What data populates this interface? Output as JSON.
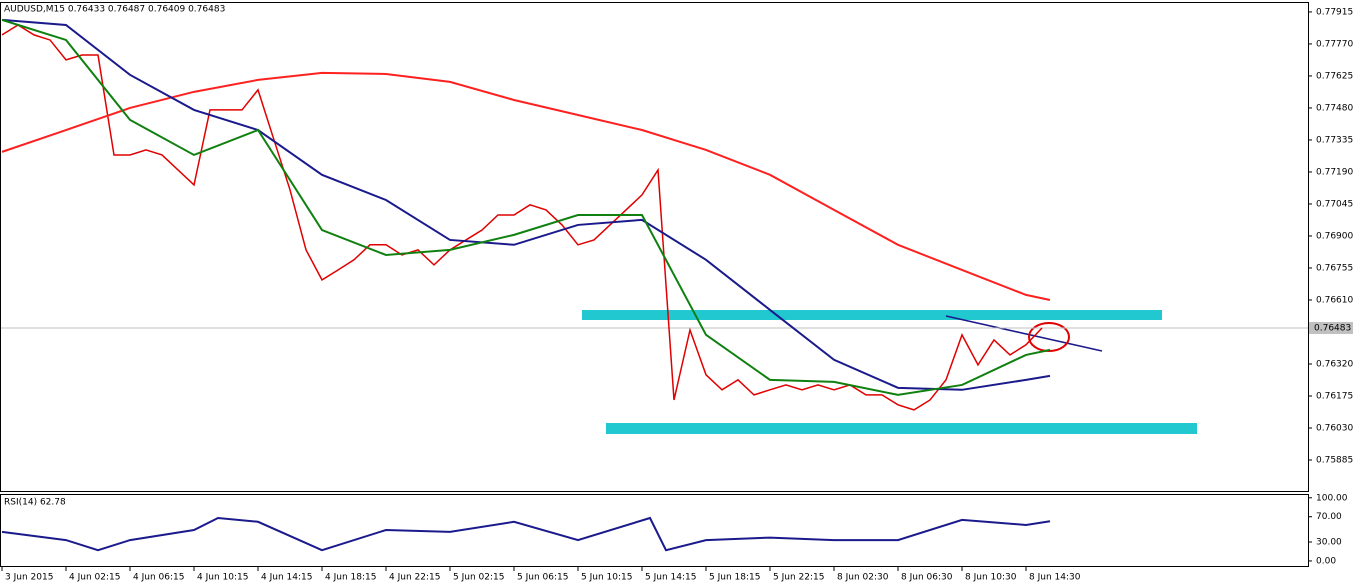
{
  "chart_data": [
    {
      "type": "line",
      "title": "AUDUSD,M15  0.76433 0.76487 0.76409 0.76483",
      "xlim": [
        0,
        327
      ],
      "ylim": [
        0.7574,
        0.7796
      ],
      "yticks": [
        {
          "value": 0.77915,
          "label": "0.77915"
        },
        {
          "value": 0.7777,
          "label": "0.77770"
        },
        {
          "value": 0.77625,
          "label": "0.77625"
        },
        {
          "value": 0.7748,
          "label": "0.77480"
        },
        {
          "value": 0.77335,
          "label": "0.77335"
        },
        {
          "value": 0.7719,
          "label": "0.77190"
        },
        {
          "value": 0.77045,
          "label": "0.77045"
        },
        {
          "value": 0.769,
          "label": "0.76900"
        },
        {
          "value": 0.76755,
          "label": "0.76755"
        },
        {
          "value": 0.7661,
          "label": "0.76610"
        },
        {
          "value": 0.7632,
          "label": "0.76320"
        },
        {
          "value": 0.76175,
          "label": "0.76175"
        },
        {
          "value": 0.7603,
          "label": "0.76030"
        },
        {
          "value": 0.75885,
          "label": "0.75885"
        }
      ],
      "current_price": {
        "value": 0.76483,
        "label": "0.76483"
      },
      "series": [
        {
          "color": "#e00000",
          "x": [
            0,
            4,
            8,
            12,
            16,
            20,
            24,
            28,
            32,
            36,
            40,
            44,
            48,
            52,
            56,
            60,
            64,
            68,
            72,
            76,
            80,
            84,
            88,
            92,
            96,
            100,
            104,
            108,
            112,
            116,
            120,
            124,
            128,
            132,
            136,
            140,
            144,
            148,
            152,
            156,
            160,
            164,
            168,
            172,
            176,
            180,
            184,
            188,
            192,
            196,
            200,
            204,
            208,
            212,
            216,
            220,
            224,
            228,
            232,
            236,
            240,
            244,
            248,
            252,
            256,
            260
          ],
          "values": [
            0.77811,
            0.77856,
            0.77811,
            0.77788,
            0.77698,
            0.7772,
            0.7772,
            0.77267,
            0.77267,
            0.7729,
            0.77267,
            0.77199,
            0.77131,
            0.77471,
            0.77471,
            0.77471,
            0.77562,
            0.77335,
            0.77109,
            0.76837,
            0.76701,
            0.76746,
            0.76792,
            0.7686,
            0.7686,
            0.76814,
            0.76837,
            0.76769,
            0.76837,
            0.76882,
            0.76927,
            0.76995,
            0.76995,
            0.77041,
            0.77018,
            0.7695,
            0.7686,
            0.76882,
            0.7695,
            0.77018,
            0.77086,
            0.77199,
            0.76157,
            0.76474,
            0.76271,
            0.76203,
            0.76248,
            0.7618,
            0.76203,
            0.76225,
            0.76203,
            0.76225,
            0.76203,
            0.76225,
            0.7618,
            0.7618,
            0.76135,
            0.76112,
            0.76157,
            0.76248,
            0.76452,
            0.76316,
            0.76429,
            0.76361,
            0.76407,
            0.76483
          ]
        },
        {
          "color": "#ff2020",
          "x": [
            0,
            16,
            32,
            48,
            64,
            80,
            96,
            112,
            128,
            144,
            160,
            176,
            192,
            208,
            224,
            240,
            256,
            262
          ],
          "values": [
            0.77281,
            0.7738,
            0.7748,
            0.77553,
            0.77607,
            0.77639,
            0.77634,
            0.77598,
            0.77516,
            0.77448,
            0.7738,
            0.7729,
            0.77177,
            0.77018,
            0.7686,
            0.76746,
            0.76633,
            0.7661
          ]
        },
        {
          "color": "#1a1a8c",
          "x": [
            0,
            16,
            32,
            48,
            64,
            80,
            96,
            112,
            128,
            144,
            160,
            176,
            192,
            208,
            224,
            240,
            256,
            262
          ],
          "values": [
            0.77879,
            0.77856,
            0.7763,
            0.77471,
            0.7738,
            0.77177,
            0.77063,
            0.76882,
            0.7686,
            0.7695,
            0.76973,
            0.76792,
            0.76565,
            0.76339,
            0.76212,
            0.76203,
            0.76248,
            0.76266
          ]
        },
        {
          "color": "#108010",
          "x": [
            0,
            16,
            32,
            48,
            64,
            80,
            96,
            112,
            128,
            144,
            160,
            176,
            192,
            208,
            224,
            240,
            256,
            262
          ],
          "values": [
            0.77879,
            0.77788,
            0.77426,
            0.77267,
            0.7738,
            0.76927,
            0.76814,
            0.76837,
            0.76905,
            0.76995,
            0.76995,
            0.76452,
            0.76248,
            0.76239,
            0.7618,
            0.76225,
            0.76361,
            0.76384
          ]
        }
      ]
    },
    {
      "type": "line",
      "title": "RSI(14) 62.78",
      "xlim": [
        0,
        327
      ],
      "ylim": [
        -27,
        106
      ],
      "yticks": [
        {
          "value": 100,
          "label": "100.00"
        },
        {
          "value": 70,
          "label": "70.00"
        },
        {
          "value": 30,
          "label": "30.00"
        },
        {
          "value": 0,
          "label": "0.00"
        }
      ],
      "xticks": [
        {
          "value": 0,
          "label": "3 Jun 2015"
        },
        {
          "value": 16,
          "label": "4 Jun 02:15"
        },
        {
          "value": 32,
          "label": "4 Jun 06:15"
        },
        {
          "value": 48,
          "label": "4 Jun 10:15"
        },
        {
          "value": 64,
          "label": "4 Jun 14:15"
        },
        {
          "value": 80,
          "label": "4 Jun 18:15"
        },
        {
          "value": 96,
          "label": "4 Jun 22:15"
        },
        {
          "value": 112,
          "label": "5 Jun 02:15"
        },
        {
          "value": 128,
          "label": "5 Jun 06:15"
        },
        {
          "value": 144,
          "label": "5 Jun 10:15"
        },
        {
          "value": 160,
          "label": "5 Jun 14:15"
        },
        {
          "value": 176,
          "label": "5 Jun 18:15"
        },
        {
          "value": 192,
          "label": "5 Jun 22:15"
        },
        {
          "value": 208,
          "label": "8 Jun 02:30"
        },
        {
          "value": 224,
          "label": "8 Jun 06:30"
        },
        {
          "value": 240,
          "label": "8 Jun 10:30"
        },
        {
          "value": 256,
          "label": "8 Jun 14:30"
        }
      ],
      "series": [
        {
          "color": "#1a1a8c",
          "x": [
            0,
            16,
            24,
            32,
            48,
            54,
            64,
            80,
            96,
            112,
            128,
            144,
            162,
            166,
            176,
            192,
            208,
            224,
            240,
            256,
            262
          ],
          "values": [
            46,
            33,
            17,
            33,
            49,
            68,
            62,
            17,
            49,
            46,
            62,
            33,
            68,
            17,
            33,
            37,
            33,
            33,
            65,
            57,
            62.78
          ]
        }
      ]
    }
  ]
}
